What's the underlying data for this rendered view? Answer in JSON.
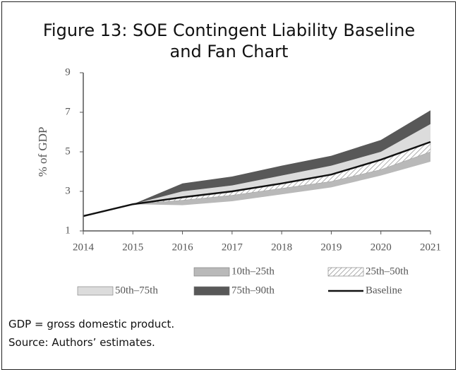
{
  "chart_data": {
    "type": "fan",
    "title": "Figure 13: SOE Contingent Liability Baseline and Fan Chart",
    "y_label": "% of GDP",
    "x": [
      2014,
      2015,
      2016,
      2017,
      2018,
      2019,
      2020,
      2021
    ],
    "xlim": [
      2014,
      2021
    ],
    "xticks": [
      2014,
      2015,
      2016,
      2017,
      2018,
      2019,
      2020,
      2021
    ],
    "ylim": [
      1,
      9
    ],
    "yticks": [
      1,
      3,
      5,
      7,
      9
    ],
    "legend": "bottom",
    "bands": [
      {
        "name": "10th–25th",
        "color": "#b9b9b9",
        "lower": [
          1.75,
          2.35,
          2.3,
          2.5,
          2.85,
          3.2,
          3.8,
          4.5
        ],
        "upper": [
          1.75,
          2.35,
          2.55,
          2.8,
          3.15,
          3.5,
          4.1,
          5.0
        ]
      },
      {
        "name": "25th–50th",
        "color": "hatch",
        "lower": [
          1.75,
          2.35,
          2.55,
          2.8,
          3.15,
          3.5,
          4.1,
          5.0
        ],
        "upper": [
          1.75,
          2.35,
          2.7,
          3.0,
          3.4,
          3.85,
          4.6,
          5.5
        ]
      },
      {
        "name": "50th–75th",
        "color": "#dcdcdc",
        "lower": [
          1.75,
          2.35,
          2.7,
          3.0,
          3.4,
          3.85,
          4.6,
          5.5
        ],
        "upper": [
          1.75,
          2.35,
          3.0,
          3.3,
          3.8,
          4.3,
          5.0,
          6.4
        ]
      },
      {
        "name": "75th–90th",
        "color": "#585858",
        "lower": [
          1.75,
          2.35,
          3.0,
          3.3,
          3.8,
          4.3,
          5.0,
          6.4
        ],
        "upper": [
          1.75,
          2.35,
          3.4,
          3.75,
          4.3,
          4.8,
          5.6,
          7.1
        ]
      }
    ],
    "series": [
      {
        "name": "Baseline",
        "color": "#111111",
        "values": [
          1.75,
          2.35,
          2.7,
          3.0,
          3.4,
          3.85,
          4.6,
          5.5
        ]
      }
    ]
  },
  "notes": [
    "GDP = gross domestic product.",
    "Source: Authors’ estimates."
  ]
}
